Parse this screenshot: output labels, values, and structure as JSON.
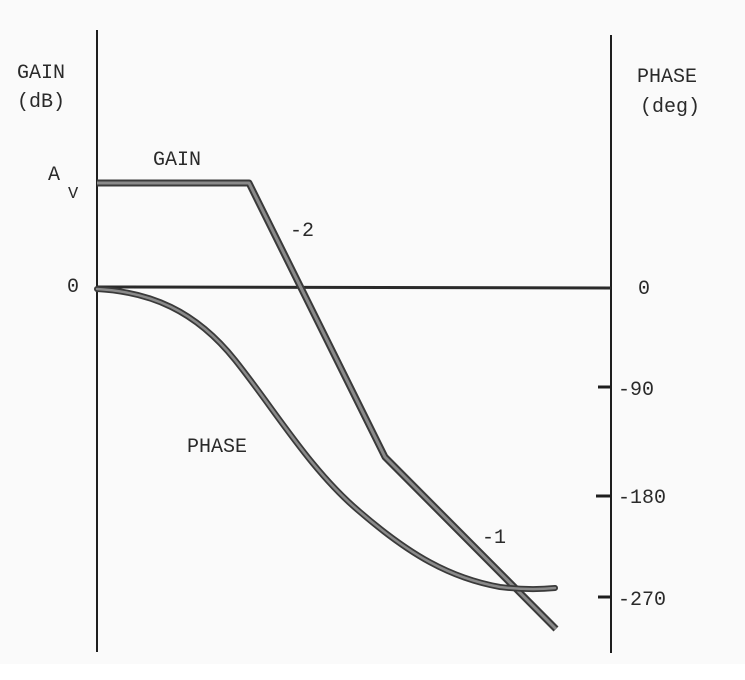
{
  "left_axis": {
    "title_line1": "GAIN",
    "title_line2": "(dB)",
    "tick_av": "A",
    "tick_av_sub": "V",
    "tick_zero": "0"
  },
  "right_axis": {
    "title_line1": "PHASE",
    "title_line2": "(deg)",
    "ticks": [
      "0",
      "-90",
      "-180",
      "-270"
    ]
  },
  "curves": {
    "gain_label": "GAIN",
    "phase_label": "PHASE",
    "slope_labels": [
      "-2",
      "-1"
    ]
  },
  "colors": {
    "curve": "#5a5a5a",
    "axis": "#1e1e1e",
    "text": "#2a2a2a"
  }
}
